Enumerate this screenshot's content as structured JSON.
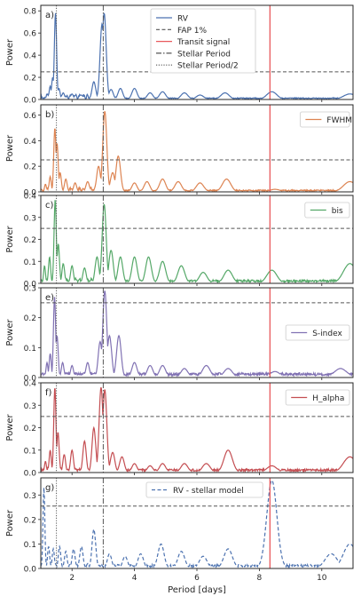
{
  "chart_data": {
    "type": "line",
    "xlabel": "Period [days]",
    "xlim": [
      1,
      11
    ],
    "x_ticks": [
      2,
      4,
      6,
      8,
      10
    ],
    "shared_x": true,
    "reference_lines": {
      "transit_signal_period": 8.34,
      "stellar_period": 3.0,
      "stellar_period_half": 1.5
    },
    "colors": {
      "rv": "#4c72b0",
      "fwhm": "#dd8452",
      "bis": "#55a868",
      "s_index": "#8172b3",
      "h_alpha": "#c44e52",
      "transit": "#e8595c",
      "reference": "#555555"
    },
    "panels": [
      {
        "label": "a)",
        "ylabel": "Power",
        "ylim": [
          0,
          0.85
        ],
        "yticks": [
          0.0,
          0.2,
          0.4,
          0.6,
          0.8
        ],
        "fap_1pct": 0.25,
        "series_name": "RV",
        "color": "#4c72b0",
        "legend": [
          "RV",
          "FAP 1%",
          "Transit signal",
          "Stellar Period",
          "Stellar Period/2"
        ],
        "peaks": [
          [
            1.22,
            0.05
          ],
          [
            1.3,
            0.12
          ],
          [
            1.38,
            0.2
          ],
          [
            1.47,
            0.78
          ],
          [
            1.58,
            0.1
          ],
          [
            1.72,
            0.06
          ],
          [
            2.0,
            0.05
          ],
          [
            2.3,
            0.04
          ],
          [
            2.7,
            0.16
          ],
          [
            2.96,
            0.68
          ],
          [
            3.03,
            0.78
          ],
          [
            3.25,
            0.09
          ],
          [
            3.55,
            0.1
          ],
          [
            4.0,
            0.1
          ],
          [
            4.5,
            0.06
          ],
          [
            4.9,
            0.07
          ],
          [
            5.6,
            0.06
          ],
          [
            6.1,
            0.04
          ],
          [
            6.9,
            0.06
          ],
          [
            8.4,
            0.07
          ],
          [
            10.9,
            0.05
          ]
        ]
      },
      {
        "label": "b)",
        "ylabel": "Power",
        "ylim": [
          0,
          0.68
        ],
        "yticks": [
          0.0,
          0.2,
          0.4,
          0.6
        ],
        "fap_1pct": 0.25,
        "series_name": "FWHM",
        "color": "#dd8452",
        "legend": [
          "FWHM"
        ],
        "peaks": [
          [
            1.15,
            0.06
          ],
          [
            1.3,
            0.12
          ],
          [
            1.45,
            0.5
          ],
          [
            1.52,
            0.38
          ],
          [
            1.62,
            0.15
          ],
          [
            1.8,
            0.1
          ],
          [
            2.1,
            0.07
          ],
          [
            2.5,
            0.08
          ],
          [
            2.85,
            0.2
          ],
          [
            3.05,
            0.63
          ],
          [
            3.3,
            0.15
          ],
          [
            3.48,
            0.28
          ],
          [
            4.0,
            0.07
          ],
          [
            4.4,
            0.08
          ],
          [
            4.9,
            0.1
          ],
          [
            5.4,
            0.08
          ],
          [
            6.1,
            0.07
          ],
          [
            6.95,
            0.1
          ],
          [
            8.5,
            0.02
          ],
          [
            10.9,
            0.08
          ]
        ]
      },
      {
        "label": "c)",
        "ylabel": "Power",
        "ylim": [
          0,
          0.4
        ],
        "yticks": [
          0.0,
          0.1,
          0.2,
          0.3,
          0.4
        ],
        "fap_1pct": 0.25,
        "series_name": "bis",
        "color": "#55a868",
        "legend": [
          "bis"
        ],
        "peaks": [
          [
            1.12,
            0.08
          ],
          [
            1.28,
            0.12
          ],
          [
            1.46,
            0.38
          ],
          [
            1.56,
            0.18
          ],
          [
            1.72,
            0.09
          ],
          [
            2.0,
            0.08
          ],
          [
            2.4,
            0.07
          ],
          [
            2.8,
            0.12
          ],
          [
            3.03,
            0.36
          ],
          [
            3.25,
            0.15
          ],
          [
            3.55,
            0.12
          ],
          [
            4.0,
            0.12
          ],
          [
            4.45,
            0.12
          ],
          [
            4.9,
            0.1
          ],
          [
            5.5,
            0.08
          ],
          [
            6.2,
            0.05
          ],
          [
            7.0,
            0.06
          ],
          [
            8.4,
            0.06
          ],
          [
            10.9,
            0.09
          ]
        ]
      },
      {
        "label": "e)",
        "ylabel": "Power",
        "ylim": [
          0,
          0.3
        ],
        "yticks": [
          0.0,
          0.1,
          0.2,
          0.3
        ],
        "fap_1pct": 0.25,
        "series_name": "S-index",
        "color": "#8172b3",
        "legend": [
          "S-index"
        ],
        "peaks": [
          [
            1.2,
            0.05
          ],
          [
            1.3,
            0.08
          ],
          [
            1.44,
            0.27
          ],
          [
            1.52,
            0.14
          ],
          [
            1.7,
            0.05
          ],
          [
            2.0,
            0.04
          ],
          [
            2.5,
            0.05
          ],
          [
            2.9,
            0.12
          ],
          [
            3.05,
            0.29
          ],
          [
            3.2,
            0.14
          ],
          [
            3.5,
            0.14
          ],
          [
            4.0,
            0.05
          ],
          [
            4.5,
            0.04
          ],
          [
            4.9,
            0.04
          ],
          [
            5.6,
            0.03
          ],
          [
            6.3,
            0.04
          ],
          [
            7.0,
            0.03
          ],
          [
            8.5,
            0.02
          ],
          [
            10.6,
            0.03
          ]
        ]
      },
      {
        "label": "f)",
        "ylabel": "Power",
        "ylim": [
          0,
          0.4
        ],
        "yticks": [
          0.0,
          0.1,
          0.2,
          0.3,
          0.4
        ],
        "fap_1pct": 0.25,
        "series_name": "H_alpha",
        "color": "#c44e52",
        "legend": [
          "H_alpha"
        ],
        "peaks": [
          [
            1.15,
            0.05
          ],
          [
            1.3,
            0.1
          ],
          [
            1.45,
            0.38
          ],
          [
            1.55,
            0.18
          ],
          [
            1.75,
            0.08
          ],
          [
            2.0,
            0.1
          ],
          [
            2.4,
            0.14
          ],
          [
            2.7,
            0.2
          ],
          [
            2.93,
            0.38
          ],
          [
            3.05,
            0.37
          ],
          [
            3.3,
            0.09
          ],
          [
            3.6,
            0.07
          ],
          [
            4.0,
            0.04
          ],
          [
            4.5,
            0.03
          ],
          [
            4.9,
            0.04
          ],
          [
            5.6,
            0.04
          ],
          [
            6.3,
            0.04
          ],
          [
            7.0,
            0.1
          ],
          [
            8.4,
            0.03
          ],
          [
            10.9,
            0.07
          ]
        ]
      },
      {
        "label": "g)",
        "ylabel": "Power",
        "ylim": [
          0,
          0.37
        ],
        "yticks": [
          0.0,
          0.1,
          0.2,
          0.3
        ],
        "fap_1pct": 0.255,
        "series_name": "RV - stellar model",
        "color": "#4c72b0",
        "dashed": true,
        "legend": [
          "RV - stellar model"
        ],
        "peaks": [
          [
            1.1,
            0.33
          ],
          [
            1.25,
            0.09
          ],
          [
            1.4,
            0.08
          ],
          [
            1.6,
            0.09
          ],
          [
            1.8,
            0.07
          ],
          [
            2.05,
            0.08
          ],
          [
            2.3,
            0.09
          ],
          [
            2.7,
            0.16
          ],
          [
            3.2,
            0.06
          ],
          [
            3.7,
            0.05
          ],
          [
            4.2,
            0.06
          ],
          [
            4.85,
            0.1
          ],
          [
            5.5,
            0.07
          ],
          [
            6.2,
            0.05
          ],
          [
            7.0,
            0.08
          ],
          [
            8.4,
            0.36
          ],
          [
            10.3,
            0.06
          ],
          [
            10.9,
            0.1
          ]
        ]
      }
    ]
  }
}
